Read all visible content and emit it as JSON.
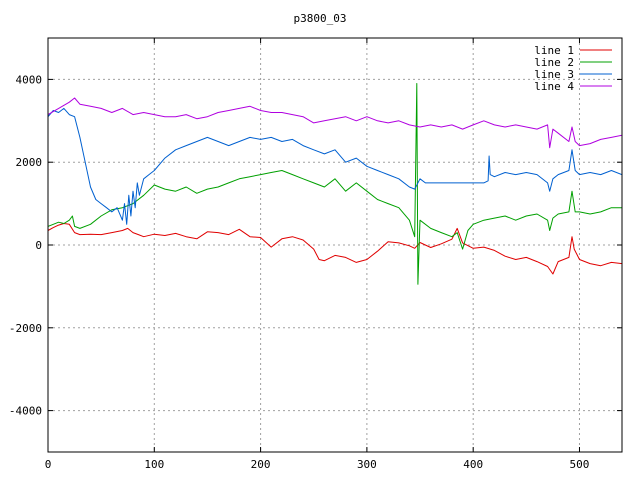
{
  "chart_data": {
    "type": "line",
    "title": "p3800_03",
    "xlabel": "",
    "ylabel": "",
    "xlim": [
      0,
      540
    ],
    "ylim": [
      -5000,
      5000
    ],
    "xticks": [
      0,
      100,
      200,
      300,
      400,
      500
    ],
    "yticks": [
      -4000,
      -2000,
      0,
      2000,
      4000
    ],
    "grid": true,
    "legend_position": "top-right",
    "series": [
      {
        "name": "line 1",
        "color": "#e00000",
        "points": [
          [
            0,
            350
          ],
          [
            5,
            420
          ],
          [
            10,
            480
          ],
          [
            15,
            520
          ],
          [
            20,
            500
          ],
          [
            25,
            300
          ],
          [
            30,
            250
          ],
          [
            40,
            260
          ],
          [
            50,
            250
          ],
          [
            60,
            300
          ],
          [
            70,
            350
          ],
          [
            75,
            400
          ],
          [
            80,
            300
          ],
          [
            85,
            250
          ],
          [
            90,
            200
          ],
          [
            100,
            260
          ],
          [
            110,
            230
          ],
          [
            120,
            280
          ],
          [
            130,
            200
          ],
          [
            140,
            150
          ],
          [
            150,
            320
          ],
          [
            160,
            300
          ],
          [
            170,
            250
          ],
          [
            180,
            380
          ],
          [
            190,
            200
          ],
          [
            200,
            180
          ],
          [
            210,
            -50
          ],
          [
            220,
            150
          ],
          [
            230,
            200
          ],
          [
            240,
            120
          ],
          [
            250,
            -100
          ],
          [
            255,
            -350
          ],
          [
            260,
            -380
          ],
          [
            270,
            -250
          ],
          [
            280,
            -300
          ],
          [
            290,
            -420
          ],
          [
            300,
            -350
          ],
          [
            310,
            -150
          ],
          [
            320,
            80
          ],
          [
            330,
            50
          ],
          [
            340,
            -20
          ],
          [
            345,
            -80
          ],
          [
            350,
            60
          ],
          [
            360,
            -60
          ],
          [
            370,
            30
          ],
          [
            380,
            140
          ],
          [
            385,
            400
          ],
          [
            390,
            50
          ],
          [
            400,
            -80
          ],
          [
            410,
            -50
          ],
          [
            420,
            -130
          ],
          [
            430,
            -270
          ],
          [
            440,
            -350
          ],
          [
            450,
            -300
          ],
          [
            460,
            -400
          ],
          [
            470,
            -520
          ],
          [
            475,
            -700
          ],
          [
            480,
            -400
          ],
          [
            490,
            -300
          ],
          [
            493,
            200
          ],
          [
            495,
            -100
          ],
          [
            500,
            -350
          ],
          [
            510,
            -450
          ],
          [
            520,
            -500
          ],
          [
            530,
            -420
          ],
          [
            540,
            -450
          ]
        ]
      },
      {
        "name": "line 2",
        "color": "#00a000",
        "points": [
          [
            0,
            450
          ],
          [
            5,
            500
          ],
          [
            10,
            550
          ],
          [
            15,
            520
          ],
          [
            20,
            600
          ],
          [
            23,
            700
          ],
          [
            25,
            450
          ],
          [
            30,
            400
          ],
          [
            40,
            500
          ],
          [
            50,
            700
          ],
          [
            60,
            850
          ],
          [
            70,
            900
          ],
          [
            80,
            1000
          ],
          [
            90,
            1200
          ],
          [
            100,
            1450
          ],
          [
            110,
            1350
          ],
          [
            120,
            1300
          ],
          [
            130,
            1400
          ],
          [
            140,
            1250
          ],
          [
            150,
            1350
          ],
          [
            160,
            1400
          ],
          [
            170,
            1500
          ],
          [
            180,
            1600
          ],
          [
            190,
            1650
          ],
          [
            200,
            1700
          ],
          [
            210,
            1750
          ],
          [
            220,
            1800
          ],
          [
            230,
            1700
          ],
          [
            240,
            1600
          ],
          [
            250,
            1500
          ],
          [
            260,
            1400
          ],
          [
            270,
            1600
          ],
          [
            280,
            1300
          ],
          [
            290,
            1500
          ],
          [
            300,
            1300
          ],
          [
            310,
            1100
          ],
          [
            320,
            1000
          ],
          [
            330,
            900
          ],
          [
            340,
            600
          ],
          [
            345,
            200
          ],
          [
            347,
            3900
          ],
          [
            348,
            -950
          ],
          [
            350,
            600
          ],
          [
            360,
            400
          ],
          [
            370,
            300
          ],
          [
            380,
            200
          ],
          [
            385,
            300
          ],
          [
            390,
            -100
          ],
          [
            395,
            350
          ],
          [
            400,
            500
          ],
          [
            410,
            600
          ],
          [
            420,
            650
          ],
          [
            430,
            700
          ],
          [
            440,
            600
          ],
          [
            450,
            700
          ],
          [
            460,
            750
          ],
          [
            470,
            600
          ],
          [
            472,
            350
          ],
          [
            475,
            650
          ],
          [
            480,
            750
          ],
          [
            490,
            800
          ],
          [
            493,
            1300
          ],
          [
            496,
            800
          ],
          [
            500,
            800
          ],
          [
            510,
            750
          ],
          [
            520,
            800
          ],
          [
            530,
            900
          ],
          [
            540,
            900
          ]
        ]
      },
      {
        "name": "line 3",
        "color": "#0060d0",
        "points": [
          [
            0,
            3100
          ],
          [
            5,
            3250
          ],
          [
            10,
            3200
          ],
          [
            15,
            3300
          ],
          [
            20,
            3150
          ],
          [
            25,
            3100
          ],
          [
            30,
            2600
          ],
          [
            35,
            2000
          ],
          [
            40,
            1400
          ],
          [
            45,
            1100
          ],
          [
            50,
            1000
          ],
          [
            55,
            900
          ],
          [
            60,
            800
          ],
          [
            65,
            900
          ],
          [
            70,
            600
          ],
          [
            72,
            1000
          ],
          [
            74,
            500
          ],
          [
            76,
            1200
          ],
          [
            78,
            700
          ],
          [
            80,
            1300
          ],
          [
            82,
            900
          ],
          [
            84,
            1500
          ],
          [
            86,
            1200
          ],
          [
            90,
            1600
          ],
          [
            95,
            1700
          ],
          [
            100,
            1800
          ],
          [
            110,
            2100
          ],
          [
            120,
            2300
          ],
          [
            130,
            2400
          ],
          [
            140,
            2500
          ],
          [
            150,
            2600
          ],
          [
            160,
            2500
          ],
          [
            170,
            2400
          ],
          [
            180,
            2500
          ],
          [
            190,
            2600
          ],
          [
            200,
            2550
          ],
          [
            210,
            2600
          ],
          [
            220,
            2500
          ],
          [
            230,
            2550
          ],
          [
            240,
            2400
          ],
          [
            250,
            2300
          ],
          [
            260,
            2200
          ],
          [
            270,
            2300
          ],
          [
            280,
            2000
          ],
          [
            290,
            2100
          ],
          [
            300,
            1900
          ],
          [
            310,
            1800
          ],
          [
            320,
            1700
          ],
          [
            330,
            1600
          ],
          [
            340,
            1400
          ],
          [
            345,
            1350
          ],
          [
            350,
            1600
          ],
          [
            355,
            1500
          ],
          [
            360,
            1500
          ],
          [
            380,
            1500
          ],
          [
            400,
            1500
          ],
          [
            410,
            1500
          ],
          [
            414,
            1550
          ],
          [
            415,
            2150
          ],
          [
            416,
            1700
          ],
          [
            420,
            1650
          ],
          [
            430,
            1750
          ],
          [
            440,
            1700
          ],
          [
            450,
            1750
          ],
          [
            460,
            1700
          ],
          [
            470,
            1500
          ],
          [
            472,
            1300
          ],
          [
            475,
            1600
          ],
          [
            480,
            1700
          ],
          [
            490,
            1800
          ],
          [
            493,
            2300
          ],
          [
            496,
            1800
          ],
          [
            500,
            1700
          ],
          [
            510,
            1750
          ],
          [
            520,
            1700
          ],
          [
            530,
            1800
          ],
          [
            540,
            1700
          ]
        ]
      },
      {
        "name": "line 4",
        "color": "#b000e0",
        "points": [
          [
            0,
            3150
          ],
          [
            10,
            3300
          ],
          [
            20,
            3450
          ],
          [
            25,
            3550
          ],
          [
            30,
            3400
          ],
          [
            40,
            3350
          ],
          [
            50,
            3300
          ],
          [
            60,
            3200
          ],
          [
            70,
            3300
          ],
          [
            80,
            3150
          ],
          [
            90,
            3200
          ],
          [
            100,
            3150
          ],
          [
            110,
            3100
          ],
          [
            120,
            3100
          ],
          [
            130,
            3150
          ],
          [
            140,
            3050
          ],
          [
            150,
            3100
          ],
          [
            160,
            3200
          ],
          [
            170,
            3250
          ],
          [
            180,
            3300
          ],
          [
            190,
            3350
          ],
          [
            200,
            3250
          ],
          [
            210,
            3200
          ],
          [
            220,
            3200
          ],
          [
            230,
            3150
          ],
          [
            240,
            3100
          ],
          [
            250,
            2950
          ],
          [
            260,
            3000
          ],
          [
            270,
            3050
          ],
          [
            280,
            3100
          ],
          [
            290,
            3000
          ],
          [
            300,
            3100
          ],
          [
            310,
            3000
          ],
          [
            320,
            2950
          ],
          [
            330,
            3000
          ],
          [
            340,
            2900
          ],
          [
            350,
            2850
          ],
          [
            360,
            2900
          ],
          [
            370,
            2850
          ],
          [
            380,
            2900
          ],
          [
            390,
            2800
          ],
          [
            400,
            2900
          ],
          [
            410,
            3000
          ],
          [
            420,
            2900
          ],
          [
            430,
            2850
          ],
          [
            440,
            2900
          ],
          [
            450,
            2850
          ],
          [
            460,
            2800
          ],
          [
            470,
            2900
          ],
          [
            472,
            2350
          ],
          [
            475,
            2800
          ],
          [
            480,
            2700
          ],
          [
            490,
            2500
          ],
          [
            493,
            2850
          ],
          [
            496,
            2500
          ],
          [
            500,
            2400
          ],
          [
            510,
            2450
          ],
          [
            520,
            2550
          ],
          [
            530,
            2600
          ],
          [
            540,
            2650
          ]
        ]
      }
    ]
  }
}
